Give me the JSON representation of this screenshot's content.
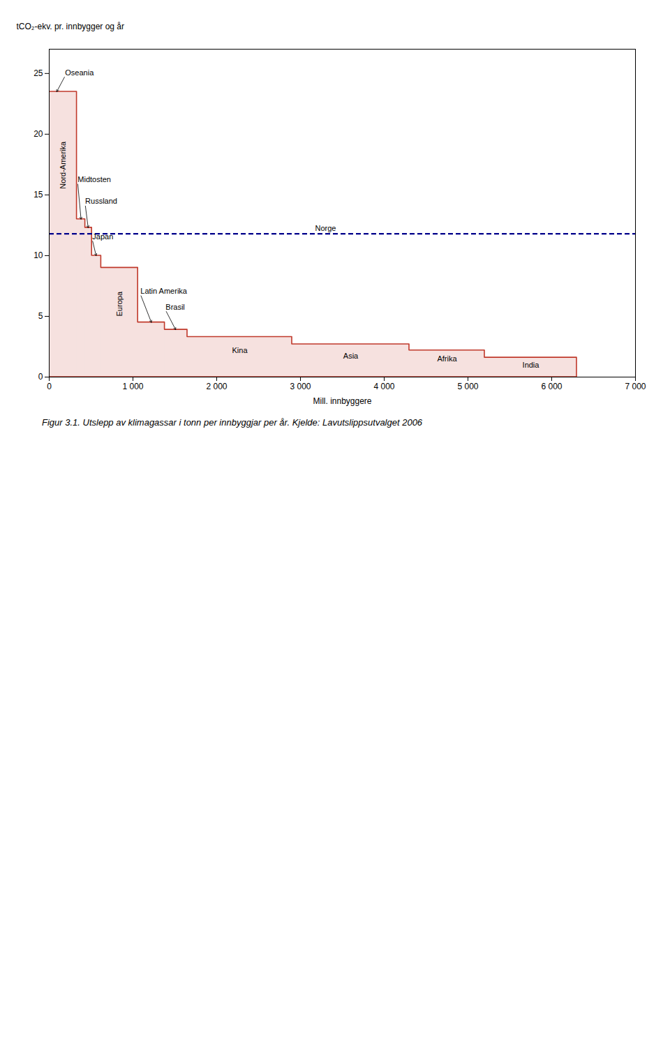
{
  "chart_data": {
    "type": "bar",
    "ylabel": "tCO₂-ekv. pr. innbygger og år",
    "xlabel": "Mill. innbyggere",
    "caption": "Figur 3.1. Utslepp av klimagassar i tonn per innbyggjar per år. Kjelde: Lavutslippsutvalget 2006",
    "x_start": [
      0,
      330,
      430,
      510,
      620,
      1060,
      1380,
      1650,
      2900,
      4300,
      5200
    ],
    "x_end": [
      330,
      430,
      510,
      620,
      1060,
      1380,
      1650,
      2900,
      4300,
      5200,
      6300
    ],
    "values": [
      23.5,
      13.0,
      12.3,
      10.0,
      9.0,
      4.5,
      3.9,
      3.3,
      2.7,
      2.2,
      1.6
    ],
    "color": "#c0392b",
    "xlim": [
      0,
      7000
    ],
    "xticks": [
      0,
      {
        "value": 1000,
        "label": "1 000"
      },
      {
        "value": 2000,
        "label": "2 000"
      },
      {
        "value": 3000,
        "label": "3 000"
      },
      {
        "value": 4000,
        "label": "4 000"
      },
      {
        "value": 5000,
        "label": "5 000"
      },
      {
        "value": 6000,
        "label": "6 000"
      },
      {
        "value": 7000,
        "label": "7 000"
      }
    ],
    "ylim": [
      0,
      27
    ],
    "yticks": [
      0,
      5,
      10,
      15,
      20,
      25
    ],
    "reference_line": {
      "value": 11.8,
      "label": "Norge",
      "label_x": 3300,
      "color": "#00008b",
      "line_style": "dashed"
    },
    "annotations": [
      {
        "text": "Oseania",
        "x": 90,
        "y": 23.5,
        "text_x": 190,
        "text_y": 24.8
      },
      {
        "text": "Nord-Amerika",
        "x": 165,
        "y": 15.5,
        "vertical": true
      },
      {
        "text": "Midtosten",
        "x": 380,
        "y": 13.0,
        "text_x": 340,
        "text_y": 16.0
      },
      {
        "text": "Russland",
        "x": 465,
        "y": 12.3,
        "text_x": 430,
        "text_y": 14.2
      },
      {
        "text": "Japan",
        "x": 560,
        "y": 10.0,
        "text_x": 515,
        "text_y": 11.3
      },
      {
        "text": "Europa",
        "x": 840,
        "y": 5.0,
        "vertical": true
      },
      {
        "text": "Latin Amerika",
        "x": 1220,
        "y": 4.5,
        "text_x": 1090,
        "text_y": 6.8
      },
      {
        "text": "Brasil",
        "x": 1510,
        "y": 3.9,
        "text_x": 1390,
        "text_y": 5.5
      },
      {
        "text": "Kina",
        "x": 2275,
        "y": 2.0
      },
      {
        "text": "Asia",
        "x": 3600,
        "y": 1.5
      },
      {
        "text": "Afrika",
        "x": 4750,
        "y": 1.3
      },
      {
        "text": "India",
        "x": 5750,
        "y": 0.8
      }
    ]
  }
}
